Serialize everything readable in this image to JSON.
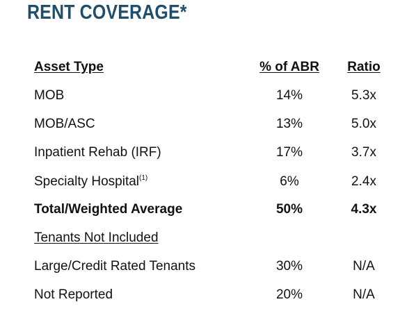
{
  "title": "RENT COVERAGE*",
  "headers": {
    "asset_type": "Asset Type",
    "pct_abr": "% of ABR",
    "ratio": "Ratio"
  },
  "rows": [
    {
      "asset_type": "MOB",
      "pct_abr": "14%",
      "ratio": "5.3x"
    },
    {
      "asset_type": "MOB/ASC",
      "pct_abr": "13%",
      "ratio": "5.0x"
    },
    {
      "asset_type": "Inpatient Rehab (IRF)",
      "pct_abr": "17%",
      "ratio": "3.7x"
    },
    {
      "asset_type": "Specialty Hospital",
      "footnote": "(1)",
      "pct_abr": "6%",
      "ratio": "2.4x"
    }
  ],
  "total": {
    "asset_type": "Total/Weighted Average",
    "pct_abr": "50%",
    "ratio": "4.3x"
  },
  "not_included": {
    "heading": "Tenants Not Included",
    "rows": [
      {
        "asset_type": "Large/Credit Rated Tenants",
        "pct_abr": "30%",
        "ratio": "N/A"
      },
      {
        "asset_type": "Not Reported",
        "pct_abr": "20%",
        "ratio": "N/A"
      }
    ]
  }
}
